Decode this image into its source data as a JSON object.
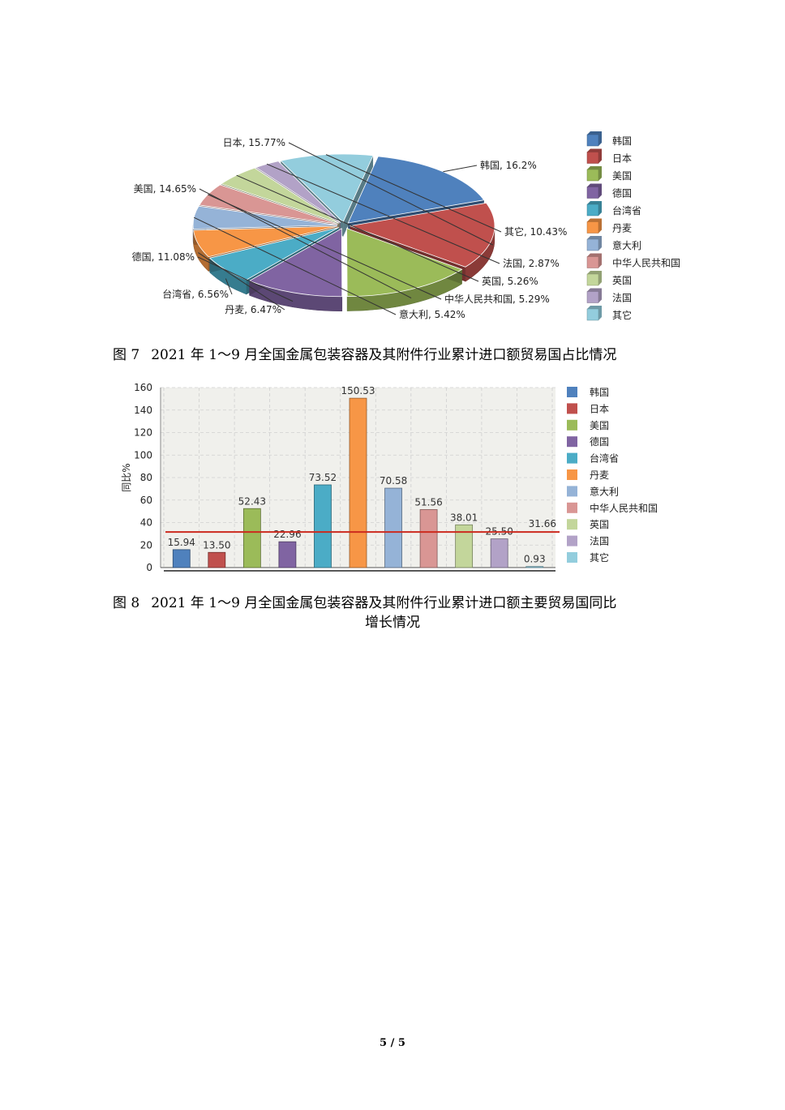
{
  "figure7": {
    "caption_no": "图 7",
    "caption_text": "2021 年 1～9 月全国金属包装容器及其附件行业累计进口额贸易国占比情况"
  },
  "figure8": {
    "caption_no": "图 8",
    "caption_line1": "2021 年 1～9 月全国金属包装容器及其附件行业累计进口额主要贸易国同比",
    "caption_line2": "增长情况"
  },
  "page_number": "5 / 5",
  "chart_data": [
    {
      "type": "pie",
      "categories": [
        "韩国",
        "日本",
        "美国",
        "德国",
        "台湾省",
        "丹麦",
        "意大利",
        "中华人民共和国",
        "英国",
        "法国",
        "其它"
      ],
      "values": [
        16.2,
        15.77,
        14.65,
        11.08,
        6.56,
        6.47,
        5.42,
        5.29,
        5.26,
        2.87,
        10.43
      ],
      "slice_labels": [
        "韩国, 16.2%",
        "日本, 15.77%",
        "美国, 14.65%",
        "德国, 11.08%",
        "台湾省, 6.56%",
        "丹麦, 6.47%",
        "意大利, 5.42%",
        "中华人民共和国, 5.29%",
        "英国, 5.26%",
        "法国, 2.87%",
        "其它, 10.43%"
      ],
      "colors": [
        "#4f81bd",
        "#c0504d",
        "#9bbb59",
        "#8064a2",
        "#4bacc6",
        "#f79646",
        "#95b3d7",
        "#d99694",
        "#c3d69b",
        "#b2a2c7",
        "#93cddd"
      ],
      "legend": "right",
      "style": "3d-exploded"
    },
    {
      "type": "bar",
      "categories": [
        "韩国",
        "日本",
        "美国",
        "德国",
        "台湾省",
        "丹麦",
        "意大利",
        "中华人民共和国",
        "英国",
        "法国",
        "其它"
      ],
      "values": [
        15.94,
        13.5,
        52.43,
        22.96,
        73.52,
        150.53,
        70.58,
        51.56,
        38.01,
        25.5,
        0.93
      ],
      "value_labels": [
        "15.94",
        "13.50",
        "52.43",
        "22.96",
        "73.52",
        "150.53",
        "70.58",
        "51.56",
        "38.01",
        "25.50",
        "0.93"
      ],
      "colors": [
        "#4f81bd",
        "#c0504d",
        "#9bbb59",
        "#8064a2",
        "#4bacc6",
        "#f79646",
        "#95b3d7",
        "#d99694",
        "#c3d69b",
        "#b2a2c7",
        "#93cddd"
      ],
      "reference_line": {
        "value": 31.66,
        "label": "31.66",
        "color": "#cc2a1e"
      },
      "ylabel": "同比%",
      "ylim": [
        0,
        160
      ],
      "yticks": [
        0,
        20,
        40,
        60,
        80,
        100,
        120,
        140,
        160
      ],
      "grid": true,
      "legend": "right"
    }
  ]
}
